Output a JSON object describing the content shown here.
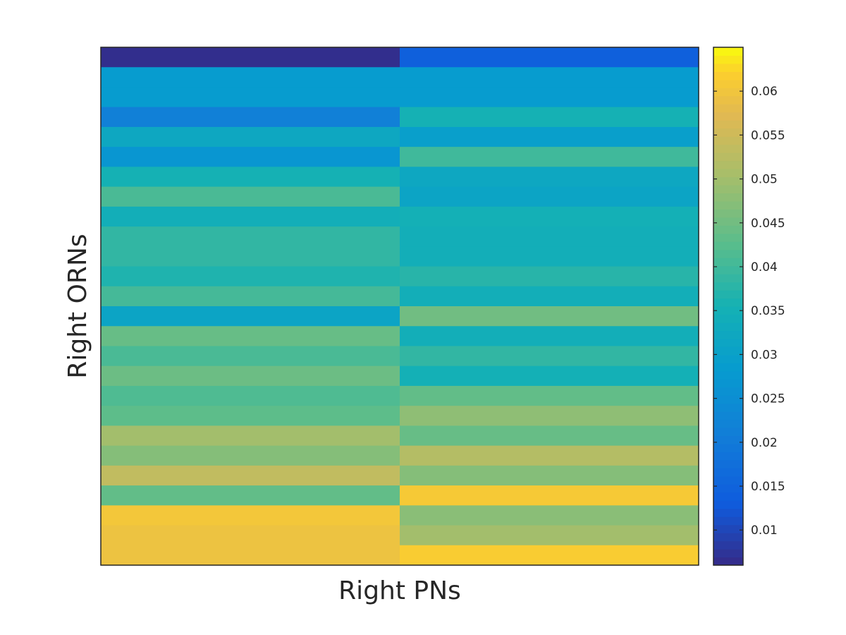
{
  "chart_data": {
    "type": "heatmap",
    "xlabel": "Right PNs",
    "ylabel": "Right ORNs",
    "columns": 2,
    "rows": 26,
    "colormap": "parula",
    "colorbar": {
      "min": 0.006,
      "max": 0.065,
      "ticks": [
        0.01,
        0.015,
        0.02,
        0.025,
        0.03,
        0.035,
        0.04,
        0.045,
        0.05,
        0.055,
        0.06
      ],
      "tick_labels": [
        "0.01",
        "0.015",
        "0.02",
        "0.025",
        "0.03",
        "0.035",
        "0.04",
        "0.045",
        "0.05",
        "0.055",
        "0.06"
      ]
    },
    "values": [
      [
        0.0065,
        0.014
      ],
      [
        0.0285,
        0.0285
      ],
      [
        0.0285,
        0.0285
      ],
      [
        0.0215,
        0.0355
      ],
      [
        0.032,
        0.0295
      ],
      [
        0.027,
        0.04
      ],
      [
        0.0355,
        0.032
      ],
      [
        0.041,
        0.031
      ],
      [
        0.0345,
        0.035
      ],
      [
        0.0385,
        0.0345
      ],
      [
        0.0385,
        0.0345
      ],
      [
        0.0365,
        0.0375
      ],
      [
        0.0405,
        0.0345
      ],
      [
        0.031,
        0.045
      ],
      [
        0.044,
        0.0345
      ],
      [
        0.041,
        0.0385
      ],
      [
        0.0445,
        0.035
      ],
      [
        0.0415,
        0.0435
      ],
      [
        0.043,
        0.048
      ],
      [
        0.05,
        0.044
      ],
      [
        0.047,
        0.052
      ],
      [
        0.0535,
        0.047
      ],
      [
        0.0435,
        0.061
      ],
      [
        0.0605,
        0.0475
      ],
      [
        0.0595,
        0.05
      ],
      [
        0.0595,
        0.0615
      ]
    ]
  }
}
